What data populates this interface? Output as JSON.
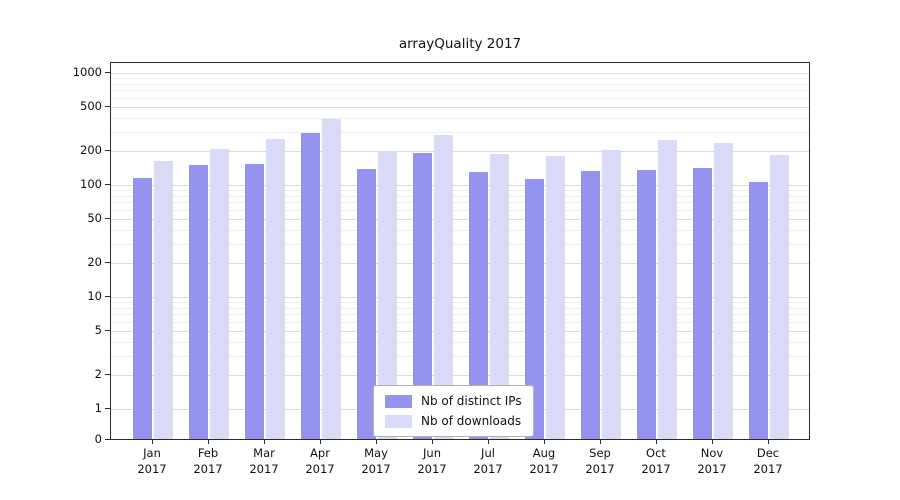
{
  "chart_data": {
    "type": "bar",
    "title": "arrayQuality 2017",
    "categories": [
      "Jan",
      "Feb",
      "Mar",
      "Apr",
      "May",
      "Jun",
      "Jul",
      "Aug",
      "Sep",
      "Oct",
      "Nov",
      "Dec"
    ],
    "year": "2017",
    "series": [
      {
        "name": "Nb of distinct IPs",
        "color": "#9494f0",
        "values": [
          115,
          150,
          155,
          290,
          140,
          193,
          130,
          113,
          133,
          135,
          143,
          106
        ]
      },
      {
        "name": "Nb of downloads",
        "color": "#d9d9f8",
        "values": [
          165,
          210,
          257,
          390,
          196,
          278,
          190,
          180,
          205,
          252,
          238,
          186
        ]
      }
    ],
    "yscale": "symlog",
    "yticks": [
      0,
      1,
      2,
      5,
      10,
      20,
      50,
      100,
      200,
      500,
      1000
    ],
    "minor_ticks": [
      3,
      4,
      6,
      7,
      8,
      9,
      30,
      40,
      60,
      70,
      80,
      90,
      300,
      400,
      600,
      700,
      800,
      900
    ],
    "ylim": [
      0,
      1500
    ],
    "grid": "horizontal",
    "legend_position": "lower center"
  }
}
